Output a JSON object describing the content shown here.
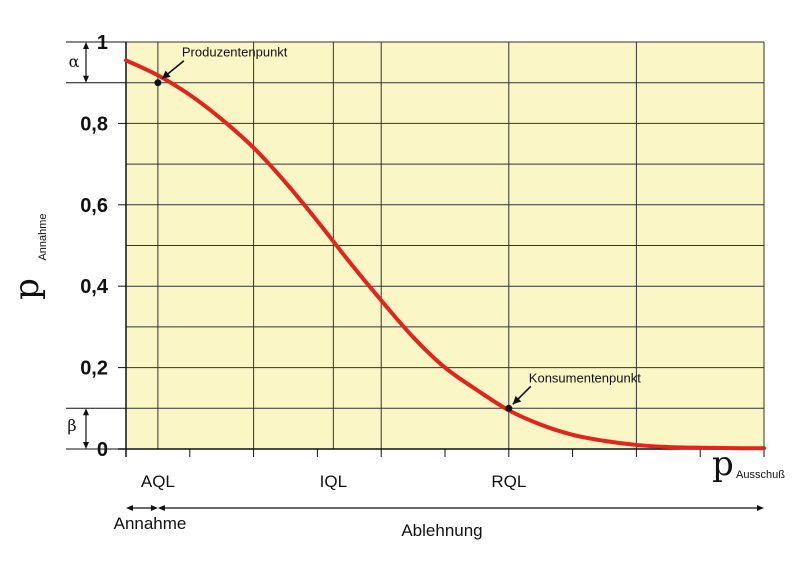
{
  "chart_data": {
    "type": "line",
    "title": "",
    "ylabel_main": "p",
    "ylabel_sub": "Annahme",
    "xlabel_main": "p",
    "xlabel_sub": "Ausschuß",
    "ylim": [
      0,
      1
    ],
    "y_ticks": [
      "0",
      "0,2",
      "0,4",
      "0,6",
      "0,8",
      "1"
    ],
    "y_tick_values": [
      0,
      0.2,
      0.4,
      0.6,
      0.8,
      1
    ],
    "x_categories": [
      "AQL",
      "IQL",
      "RQL"
    ],
    "x_category_positions": [
      0.05,
      0.325,
      0.6
    ],
    "grid": true,
    "background_color": "#fbf6c6",
    "curve_color": "#e3241b",
    "series": [
      {
        "x": [
          0,
          0.05,
          0.1,
          0.15,
          0.2,
          0.25,
          0.3,
          0.35,
          0.4,
          0.45,
          0.5,
          0.55,
          0.6,
          0.65,
          0.7,
          0.75,
          0.8,
          0.85,
          0.9,
          0.95,
          1.0
        ],
        "y": [
          0.955,
          0.918,
          0.87,
          0.81,
          0.74,
          0.655,
          0.56,
          0.46,
          0.365,
          0.275,
          0.2,
          0.145,
          0.095,
          0.06,
          0.035,
          0.02,
          0.01,
          0.005,
          0.003,
          0.002,
          0.002
        ]
      }
    ],
    "points": [
      {
        "label": "Produzentenpunkt",
        "x": 0.05,
        "y": 0.9
      },
      {
        "label": "Konsumentenpunkt",
        "x": 0.6,
        "y": 0.1
      }
    ],
    "alpha_label": "α",
    "beta_label": "β",
    "ranges": {
      "annahme": "Annahme",
      "ablehnung": "Ablehnung"
    }
  }
}
